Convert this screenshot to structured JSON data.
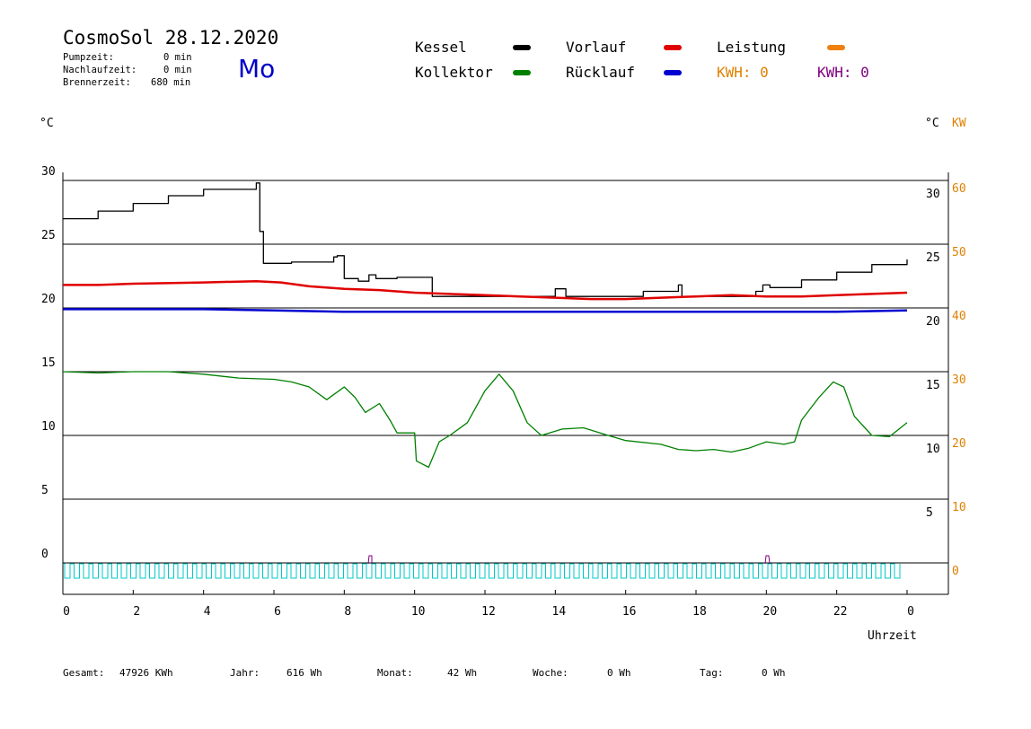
{
  "header": {
    "title": "CosmoSol 28.12.2020",
    "weekday": "Mo",
    "info": [
      {
        "label": "Pumpzeit:",
        "value": "0 min"
      },
      {
        "label": "Nachlaufzeit:",
        "value": "0 min"
      },
      {
        "label": "Brennerzeit:",
        "value": "680 min"
      }
    ]
  },
  "legend": {
    "kessel": {
      "label": "Kessel",
      "color": "#000000"
    },
    "vorlauf": {
      "label": "Vorlauf",
      "color": "#e00000"
    },
    "leistung": {
      "label": "Leistung",
      "color": "#f08010"
    },
    "kollektor": {
      "label": "Kollektor",
      "color": "#008000"
    },
    "ruecklauf": {
      "label": "Rücklauf",
      "color": "#0000d0"
    },
    "kwh1": {
      "label": "KWH: 0",
      "color": "#e08000"
    },
    "kwh2": {
      "label": "KWH: 0",
      "color": "#800080"
    }
  },
  "axes": {
    "left_unit": "°C",
    "right_unit": "°C",
    "right_unit2": "KW",
    "x_label": "Uhrzeit"
  },
  "footer": [
    {
      "label": "Gesamt:",
      "value": "47926 KWh"
    },
    {
      "label": "Jahr:",
      "value": "616 Wh"
    },
    {
      "label": "Monat:",
      "value": "42 Wh"
    },
    {
      "label": "Woche:",
      "value": "0 Wh"
    },
    {
      "label": "Tag:",
      "value": "0 Wh"
    }
  ],
  "chart_data": {
    "type": "line",
    "title": "CosmoSol 28.12.2020",
    "xlabel": "Uhrzeit",
    "ylabel": "°C",
    "xlim": [
      0,
      24
    ],
    "ylim": [
      -2,
      32
    ],
    "grid": true,
    "x_ticks": [
      "0",
      "2",
      "4",
      "6",
      "8",
      "10",
      "12",
      "14",
      "16",
      "18",
      "20",
      "22",
      "0"
    ],
    "y_ticks_left": [
      0,
      5,
      10,
      15,
      20,
      25,
      30
    ],
    "y_ticks_right": [
      5,
      10,
      15,
      20,
      25,
      30
    ],
    "y_ticks_right_kw": [
      0,
      10,
      20,
      30,
      40,
      50,
      60
    ],
    "series": [
      {
        "name": "Kessel",
        "color": "#000000",
        "step": true,
        "points": [
          [
            0,
            27.0
          ],
          [
            1,
            27.6
          ],
          [
            2,
            28.2
          ],
          [
            3,
            28.8
          ],
          [
            4,
            29.3
          ],
          [
            5.5,
            29.8
          ],
          [
            5.6,
            26.0
          ],
          [
            5.7,
            23.5
          ],
          [
            6.5,
            23.6
          ],
          [
            7.7,
            24.0
          ],
          [
            7.8,
            24.1
          ],
          [
            8.0,
            22.3
          ],
          [
            8.4,
            22.1
          ],
          [
            8.7,
            22.6
          ],
          [
            8.9,
            22.3
          ],
          [
            9.5,
            22.4
          ],
          [
            10.35,
            22.4
          ],
          [
            10.5,
            20.9
          ],
          [
            12.0,
            20.9
          ],
          [
            13.0,
            20.9
          ],
          [
            14.0,
            21.5
          ],
          [
            14.2,
            21.5
          ],
          [
            14.3,
            20.9
          ],
          [
            15.8,
            20.9
          ],
          [
            16.5,
            21.3
          ],
          [
            17.5,
            21.8
          ],
          [
            17.6,
            20.9
          ],
          [
            19.0,
            20.9
          ],
          [
            19.7,
            21.3
          ],
          [
            19.9,
            21.8
          ],
          [
            20.1,
            21.6
          ],
          [
            21.0,
            22.2
          ],
          [
            22.0,
            22.8
          ],
          [
            23.0,
            23.4
          ],
          [
            24.0,
            23.8
          ]
        ]
      },
      {
        "name": "Vorlauf",
        "color": "#e00000",
        "points": [
          [
            0,
            21.8
          ],
          [
            1,
            21.8
          ],
          [
            2,
            21.9
          ],
          [
            4,
            22.0
          ],
          [
            5.5,
            22.1
          ],
          [
            6.2,
            22.0
          ],
          [
            7,
            21.7
          ],
          [
            8,
            21.5
          ],
          [
            9,
            21.4
          ],
          [
            10,
            21.2
          ],
          [
            11,
            21.1
          ],
          [
            12,
            21.0
          ],
          [
            13,
            20.9
          ],
          [
            14,
            20.8
          ],
          [
            15,
            20.7
          ],
          [
            16,
            20.7
          ],
          [
            17,
            20.8
          ],
          [
            18,
            20.9
          ],
          [
            19,
            21.0
          ],
          [
            20,
            20.9
          ],
          [
            21,
            20.9
          ],
          [
            22,
            21.0
          ],
          [
            23,
            21.1
          ],
          [
            24,
            21.2
          ]
        ]
      },
      {
        "name": "Rücklauf",
        "color": "#0000d0",
        "points": [
          [
            0,
            19.9
          ],
          [
            2,
            19.9
          ],
          [
            4,
            19.9
          ],
          [
            6,
            19.8
          ],
          [
            8,
            19.7
          ],
          [
            10,
            19.7
          ],
          [
            12,
            19.7
          ],
          [
            14,
            19.7
          ],
          [
            16,
            19.7
          ],
          [
            18,
            19.7
          ],
          [
            20,
            19.7
          ],
          [
            22,
            19.7
          ],
          [
            24,
            19.8
          ]
        ]
      },
      {
        "name": "Kollektor",
        "color": "#008000",
        "points": [
          [
            0,
            15.0
          ],
          [
            1,
            14.9
          ],
          [
            2,
            15.0
          ],
          [
            3,
            15.0
          ],
          [
            4,
            14.8
          ],
          [
            5,
            14.5
          ],
          [
            6,
            14.4
          ],
          [
            6.5,
            14.2
          ],
          [
            7,
            13.8
          ],
          [
            7.5,
            12.8
          ],
          [
            8.0,
            13.8
          ],
          [
            8.3,
            13.0
          ],
          [
            8.6,
            11.8
          ],
          [
            9.0,
            12.5
          ],
          [
            9.3,
            11.2
          ],
          [
            9.5,
            10.2
          ],
          [
            10.0,
            10.2
          ],
          [
            10.05,
            8.0
          ],
          [
            10.4,
            7.5
          ],
          [
            10.7,
            9.5
          ],
          [
            11.0,
            10.0
          ],
          [
            11.5,
            11.0
          ],
          [
            12.0,
            13.5
          ],
          [
            12.4,
            14.8
          ],
          [
            12.8,
            13.5
          ],
          [
            13.2,
            11.0
          ],
          [
            13.6,
            10.0
          ],
          [
            14.2,
            10.5
          ],
          [
            14.8,
            10.6
          ],
          [
            15.5,
            10.0
          ],
          [
            16.0,
            9.6
          ],
          [
            17.0,
            9.3
          ],
          [
            17.5,
            8.9
          ],
          [
            18.0,
            8.8
          ],
          [
            18.5,
            8.9
          ],
          [
            19.0,
            8.7
          ],
          [
            19.5,
            9.0
          ],
          [
            20.0,
            9.5
          ],
          [
            20.5,
            9.3
          ],
          [
            20.8,
            9.5
          ],
          [
            21.0,
            11.2
          ],
          [
            21.5,
            13.0
          ],
          [
            21.9,
            14.2
          ],
          [
            22.2,
            13.8
          ],
          [
            22.5,
            11.5
          ],
          [
            23.0,
            10.0
          ],
          [
            23.5,
            9.9
          ],
          [
            24,
            11.0
          ]
        ]
      },
      {
        "name": "Pumpe",
        "color": "#00c8c8",
        "points": []
      }
    ]
  }
}
